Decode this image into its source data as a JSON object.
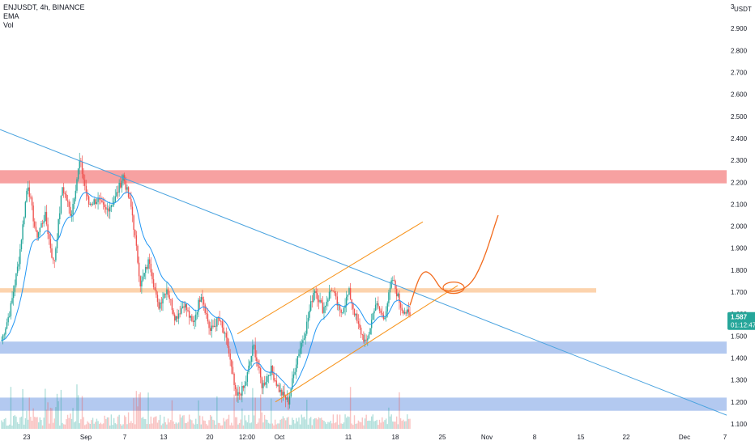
{
  "legend": {
    "symbol_line": "ENJUSDT, 4h, BINANCE",
    "indicator_ema": "EMA",
    "indicator_vol": "Vol"
  },
  "price_badge": {
    "price": "1.587",
    "countdown": "01:12:47",
    "color": "#26a69a"
  },
  "colors": {
    "up": "#26a69a",
    "down": "#ef5350",
    "ema": "#2196f3",
    "trendline": "#4aa3df",
    "zone_red": "#f7a1a1",
    "zone_orange": "#fcd3ad",
    "zone_blue": "#b3c9f0",
    "channel": "#f7931a",
    "projection": "#f26b1d"
  },
  "chart_data": {
    "type": "candlestick",
    "symbol": "ENJUSDT",
    "interval": "4h",
    "exchange": "BINANCE",
    "y_axis": {
      "unit": "USDT",
      "ticks": [
        "3",
        "2.900",
        "2.800",
        "2.700",
        "2.600",
        "2.500",
        "2.400",
        "2.300",
        "2.200",
        "2.100",
        "2.000",
        "1.900",
        "1.800",
        "1.700",
        "1.600",
        "1.500",
        "1.400",
        "1.300",
        "1.200",
        "1.100"
      ],
      "range": [
        1.1,
        3.0
      ]
    },
    "x_axis": {
      "ticks": [
        "23",
        "Sep",
        "7",
        "13",
        "20",
        "12:00",
        "Oct",
        "11",
        "18",
        "25",
        "Nov",
        "8",
        "15",
        "22",
        "Dec",
        "7"
      ]
    },
    "last_price": 1.587,
    "price_path": [
      1.48,
      1.62,
      1.85,
      2.2,
      1.95,
      2.05,
      1.82,
      2.18,
      2.05,
      2.3,
      2.1,
      2.12,
      2.07,
      2.12,
      2.23,
      2.07,
      1.73,
      1.85,
      1.63,
      1.72,
      1.58,
      1.65,
      1.55,
      1.7,
      1.52,
      1.58,
      1.46,
      1.22,
      1.27,
      1.46,
      1.27,
      1.35,
      1.25,
      1.2,
      1.4,
      1.53,
      1.72,
      1.62,
      1.72,
      1.6,
      1.7,
      1.55,
      1.46,
      1.65,
      1.58,
      1.76,
      1.63,
      1.59
    ],
    "zones": [
      {
        "name": "resistance",
        "from": 2.195,
        "to": 2.255,
        "color": "#f7a1a1"
      },
      {
        "name": "pivot",
        "from": 1.698,
        "to": 1.718,
        "color": "#fcd3ad"
      },
      {
        "name": "support",
        "from": 1.42,
        "to": 1.475,
        "color": "#b3c9f0"
      },
      {
        "name": "support-low",
        "from": 1.16,
        "to": 1.22,
        "color": "#b3c9f0"
      }
    ],
    "trendline": {
      "from": [
        0.0,
        2.44
      ],
      "to": [
        1.0,
        1.14
      ]
    },
    "channel": {
      "upper_from": 1.51,
      "upper_to": 2.02,
      "lower_from": 1.2,
      "lower_to": 1.73
    }
  }
}
